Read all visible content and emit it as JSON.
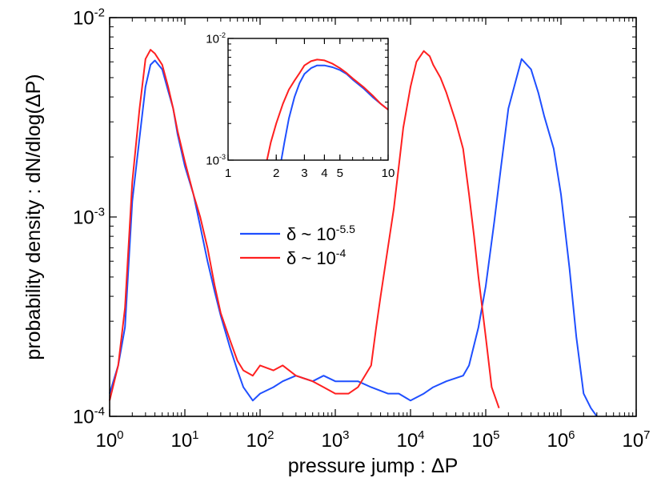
{
  "chart_data": [
    {
      "type": "line",
      "title": "",
      "xlabel": "pressure jump : ΔP",
      "ylabel": "probability density : dN/dlog(ΔP)",
      "x_scale": "log",
      "y_scale": "log",
      "xlim": [
        1,
        10000000
      ],
      "ylim": [
        0.0001,
        0.01
      ],
      "x_ticks": [
        {
          "v": 1,
          "base": "10",
          "exp": "0"
        },
        {
          "v": 10,
          "base": "10",
          "exp": "1"
        },
        {
          "v": 100,
          "base": "10",
          "exp": "2"
        },
        {
          "v": 1000,
          "base": "10",
          "exp": "3"
        },
        {
          "v": 10000,
          "base": "10",
          "exp": "4"
        },
        {
          "v": 100000,
          "base": "10",
          "exp": "5"
        },
        {
          "v": 1000000,
          "base": "10",
          "exp": "6"
        },
        {
          "v": 10000000,
          "base": "10",
          "exp": "7"
        }
      ],
      "y_ticks": [
        {
          "v": 0.0001,
          "base": "10",
          "exp": "-4"
        },
        {
          "v": 0.001,
          "base": "10",
          "exp": "-3"
        },
        {
          "v": 0.01,
          "base": "10",
          "exp": "-2"
        }
      ],
      "grid": false,
      "legend_position": "center",
      "legend": [
        {
          "symbol": "δ ~ 10",
          "exp": "-5.5",
          "color": "#1f4fff"
        },
        {
          "symbol": "δ ~ 10",
          "exp": "-4",
          "color": "#ff2020"
        }
      ],
      "series": [
        {
          "color": "#1f4fff",
          "x": [
            1,
            1.3,
            1.6,
            2,
            2.5,
            3,
            3.5,
            4,
            5,
            6,
            7,
            8,
            10,
            13,
            16,
            20,
            25,
            30,
            40,
            50,
            60,
            80,
            100,
            150,
            200,
            300,
            500,
            700,
            1000,
            1500,
            2000,
            3000,
            5000,
            7000,
            10000,
            15000,
            20000,
            30000,
            50000,
            60000,
            80000,
            100000,
            130000,
            160000,
            200000,
            250000,
            300000,
            400000,
            500000,
            600000,
            800000,
            1000000,
            1300000,
            1600000,
            2000000,
            2500000,
            3000000
          ],
          "y": [
            0.00013,
            0.00018,
            0.00028,
            0.0012,
            0.0025,
            0.0045,
            0.0058,
            0.0061,
            0.0055,
            0.0043,
            0.0035,
            0.0026,
            0.0018,
            0.0013,
            0.0009,
            0.0006,
            0.00042,
            0.00032,
            0.00022,
            0.00017,
            0.00014,
            0.00012,
            0.00013,
            0.00014,
            0.00015,
            0.00016,
            0.00015,
            0.00016,
            0.00015,
            0.00015,
            0.00015,
            0.00014,
            0.00013,
            0.00013,
            0.00012,
            0.00013,
            0.00014,
            0.00015,
            0.00016,
            0.00018,
            0.00028,
            0.00045,
            0.00095,
            0.0018,
            0.0035,
            0.0048,
            0.0062,
            0.0055,
            0.0042,
            0.0032,
            0.0022,
            0.0013,
            0.00055,
            0.00025,
            0.00013,
            0.00011,
            0.0001
          ]
        },
        {
          "color": "#ff2020",
          "x": [
            1,
            1.3,
            1.6,
            2,
            2.5,
            3,
            3.5,
            4,
            5,
            6,
            7,
            8,
            10,
            13,
            16,
            20,
            25,
            30,
            40,
            50,
            60,
            80,
            100,
            150,
            200,
            300,
            500,
            700,
            1000,
            1500,
            2000,
            3000,
            3500,
            4000,
            5000,
            6000,
            7000,
            8000,
            10000,
            12000,
            15000,
            18000,
            20000,
            25000,
            30000,
            40000,
            50000,
            60000,
            70000,
            80000,
            100000,
            120000,
            150000
          ],
          "y": [
            0.00012,
            0.00018,
            0.00035,
            0.0015,
            0.0035,
            0.0062,
            0.0069,
            0.0066,
            0.0058,
            0.0045,
            0.0035,
            0.0027,
            0.0019,
            0.0013,
            0.001,
            0.0007,
            0.00045,
            0.00033,
            0.00024,
            0.00019,
            0.00017,
            0.00016,
            0.00018,
            0.00017,
            0.00018,
            0.00016,
            0.00015,
            0.00014,
            0.00013,
            0.00013,
            0.00014,
            0.00018,
            0.00028,
            0.0004,
            0.0007,
            0.0011,
            0.0018,
            0.0028,
            0.0045,
            0.006,
            0.0068,
            0.0064,
            0.0058,
            0.005,
            0.0042,
            0.003,
            0.0022,
            0.0013,
            0.0008,
            0.0005,
            0.00025,
            0.00014,
            0.00011
          ]
        }
      ]
    },
    {
      "type": "line",
      "title": "",
      "xlabel": "",
      "ylabel": "",
      "x_scale": "log",
      "y_scale": "log",
      "xlim": [
        1,
        10
      ],
      "ylim": [
        0.001,
        0.01
      ],
      "x_ticks": [
        {
          "v": 1,
          "label": "1"
        },
        {
          "v": 2,
          "label": "2"
        },
        {
          "v": 3,
          "label": "3"
        },
        {
          "v": 4,
          "label": "4"
        },
        {
          "v": 5,
          "label": "5"
        },
        {
          "v": 10,
          "label": "10"
        }
      ],
      "y_ticks": [
        {
          "v": 0.001,
          "base": "10",
          "exp": "-3"
        },
        {
          "v": 0.01,
          "base": "10",
          "exp": "-2"
        }
      ],
      "grid": false,
      "series": [
        {
          "color": "#1f4fff",
          "x": [
            2.15,
            2.25,
            2.4,
            2.6,
            2.8,
            3,
            3.3,
            3.6,
            4,
            4.5,
            5,
            5.5,
            6,
            7,
            8,
            9,
            10
          ],
          "y": [
            0.001,
            0.0014,
            0.0022,
            0.0033,
            0.0043,
            0.0051,
            0.0057,
            0.006,
            0.006,
            0.0058,
            0.0055,
            0.0051,
            0.0046,
            0.0039,
            0.0033,
            0.0029,
            0.0026
          ]
        },
        {
          "color": "#ff2020",
          "x": [
            1.75,
            1.85,
            2,
            2.2,
            2.4,
            2.6,
            2.8,
            3,
            3.3,
            3.6,
            4,
            4.5,
            5,
            5.5,
            6,
            7,
            8,
            9,
            10
          ],
          "y": [
            0.001,
            0.0014,
            0.002,
            0.0029,
            0.0038,
            0.0045,
            0.0052,
            0.006,
            0.0065,
            0.0067,
            0.0066,
            0.0062,
            0.0057,
            0.0052,
            0.0047,
            0.004,
            0.0034,
            0.0029,
            0.0026
          ]
        }
      ]
    }
  ]
}
